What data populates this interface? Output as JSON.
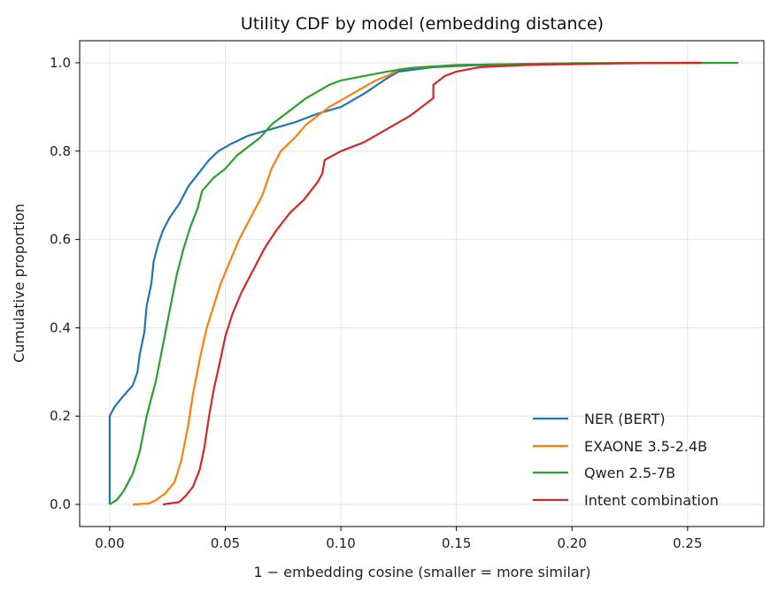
{
  "chart_data": {
    "type": "line",
    "title": "Utility CDF by model (embedding distance)",
    "xlabel": "1 − embedding cosine  (smaller = more similar)",
    "ylabel": "Cumulative proportion",
    "xlim": [
      -0.013,
      0.283
    ],
    "ylim": [
      -0.05,
      1.05
    ],
    "xticks": [
      0.0,
      0.05,
      0.1,
      0.15,
      0.2,
      0.25
    ],
    "xtick_labels": [
      "0.00",
      "0.05",
      "0.10",
      "0.15",
      "0.20",
      "0.25"
    ],
    "yticks": [
      0.0,
      0.2,
      0.4,
      0.6,
      0.8,
      1.0
    ],
    "ytick_labels": [
      "0.0",
      "0.2",
      "0.4",
      "0.6",
      "0.8",
      "1.0"
    ],
    "grid": true,
    "legend_position": "lower-right",
    "series": [
      {
        "name": "NER (BERT)",
        "color": "#1f77b4",
        "points": [
          [
            0.0,
            0.0
          ],
          [
            0.0,
            0.2
          ],
          [
            0.002,
            0.22
          ],
          [
            0.005,
            0.24
          ],
          [
            0.01,
            0.27
          ],
          [
            0.012,
            0.3
          ],
          [
            0.013,
            0.34
          ],
          [
            0.015,
            0.39
          ],
          [
            0.016,
            0.45
          ],
          [
            0.018,
            0.5
          ],
          [
            0.019,
            0.55
          ],
          [
            0.021,
            0.59
          ],
          [
            0.023,
            0.62
          ],
          [
            0.026,
            0.65
          ],
          [
            0.03,
            0.68
          ],
          [
            0.032,
            0.7
          ],
          [
            0.034,
            0.72
          ],
          [
            0.037,
            0.74
          ],
          [
            0.04,
            0.76
          ],
          [
            0.043,
            0.78
          ],
          [
            0.047,
            0.8
          ],
          [
            0.052,
            0.815
          ],
          [
            0.06,
            0.835
          ],
          [
            0.07,
            0.85
          ],
          [
            0.08,
            0.865
          ],
          [
            0.09,
            0.885
          ],
          [
            0.1,
            0.9
          ],
          [
            0.11,
            0.93
          ],
          [
            0.12,
            0.965
          ],
          [
            0.125,
            0.98
          ],
          [
            0.14,
            0.99
          ],
          [
            0.16,
            0.995
          ],
          [
            0.2,
            0.998
          ],
          [
            0.25,
            1.0
          ],
          [
            0.258,
            1.0
          ]
        ]
      },
      {
        "name": "EXAONE 3.5-2.4B",
        "color": "#ff7f0e",
        "points": [
          [
            0.01,
            0.0
          ],
          [
            0.017,
            0.002
          ],
          [
            0.02,
            0.01
          ],
          [
            0.024,
            0.025
          ],
          [
            0.028,
            0.05
          ],
          [
            0.031,
            0.1
          ],
          [
            0.034,
            0.18
          ],
          [
            0.036,
            0.25
          ],
          [
            0.039,
            0.33
          ],
          [
            0.042,
            0.4
          ],
          [
            0.045,
            0.45
          ],
          [
            0.048,
            0.5
          ],
          [
            0.052,
            0.55
          ],
          [
            0.056,
            0.6
          ],
          [
            0.061,
            0.65
          ],
          [
            0.066,
            0.7
          ],
          [
            0.07,
            0.76
          ],
          [
            0.074,
            0.8
          ],
          [
            0.08,
            0.83
          ],
          [
            0.085,
            0.86
          ],
          [
            0.09,
            0.88
          ],
          [
            0.095,
            0.9
          ],
          [
            0.1,
            0.915
          ],
          [
            0.105,
            0.93
          ],
          [
            0.11,
            0.945
          ],
          [
            0.115,
            0.96
          ],
          [
            0.12,
            0.97
          ],
          [
            0.125,
            0.985
          ],
          [
            0.135,
            0.99
          ],
          [
            0.15,
            0.995
          ],
          [
            0.2,
            0.999
          ],
          [
            0.256,
            1.0
          ]
        ]
      },
      {
        "name": "Qwen 2.5-7B",
        "color": "#2ca02c",
        "points": [
          [
            0.0,
            0.0
          ],
          [
            0.003,
            0.01
          ],
          [
            0.006,
            0.03
          ],
          [
            0.01,
            0.07
          ],
          [
            0.013,
            0.12
          ],
          [
            0.016,
            0.2
          ],
          [
            0.02,
            0.28
          ],
          [
            0.023,
            0.36
          ],
          [
            0.026,
            0.44
          ],
          [
            0.029,
            0.52
          ],
          [
            0.032,
            0.58
          ],
          [
            0.035,
            0.63
          ],
          [
            0.038,
            0.67
          ],
          [
            0.04,
            0.71
          ],
          [
            0.045,
            0.74
          ],
          [
            0.05,
            0.76
          ],
          [
            0.055,
            0.79
          ],
          [
            0.06,
            0.81
          ],
          [
            0.065,
            0.83
          ],
          [
            0.07,
            0.86
          ],
          [
            0.075,
            0.88
          ],
          [
            0.08,
            0.9
          ],
          [
            0.085,
            0.92
          ],
          [
            0.09,
            0.935
          ],
          [
            0.095,
            0.95
          ],
          [
            0.1,
            0.96
          ],
          [
            0.11,
            0.97
          ],
          [
            0.12,
            0.98
          ],
          [
            0.13,
            0.988
          ],
          [
            0.15,
            0.995
          ],
          [
            0.2,
            0.999
          ],
          [
            0.272,
            1.0
          ]
        ]
      },
      {
        "name": "Intent combination",
        "color": "#d62728",
        "points": [
          [
            0.023,
            0.0
          ],
          [
            0.03,
            0.005
          ],
          [
            0.033,
            0.02
          ],
          [
            0.036,
            0.04
          ],
          [
            0.039,
            0.08
          ],
          [
            0.041,
            0.13
          ],
          [
            0.043,
            0.2
          ],
          [
            0.045,
            0.26
          ],
          [
            0.048,
            0.33
          ],
          [
            0.05,
            0.38
          ],
          [
            0.053,
            0.43
          ],
          [
            0.057,
            0.48
          ],
          [
            0.062,
            0.53
          ],
          [
            0.067,
            0.58
          ],
          [
            0.072,
            0.62
          ],
          [
            0.078,
            0.66
          ],
          [
            0.084,
            0.69
          ],
          [
            0.09,
            0.73
          ],
          [
            0.092,
            0.75
          ],
          [
            0.093,
            0.78
          ],
          [
            0.1,
            0.8
          ],
          [
            0.11,
            0.82
          ],
          [
            0.12,
            0.85
          ],
          [
            0.13,
            0.88
          ],
          [
            0.135,
            0.9
          ],
          [
            0.14,
            0.92
          ],
          [
            0.14,
            0.95
          ],
          [
            0.145,
            0.97
          ],
          [
            0.15,
            0.98
          ],
          [
            0.16,
            0.99
          ],
          [
            0.18,
            0.995
          ],
          [
            0.22,
            0.999
          ],
          [
            0.256,
            1.0
          ]
        ]
      }
    ]
  }
}
